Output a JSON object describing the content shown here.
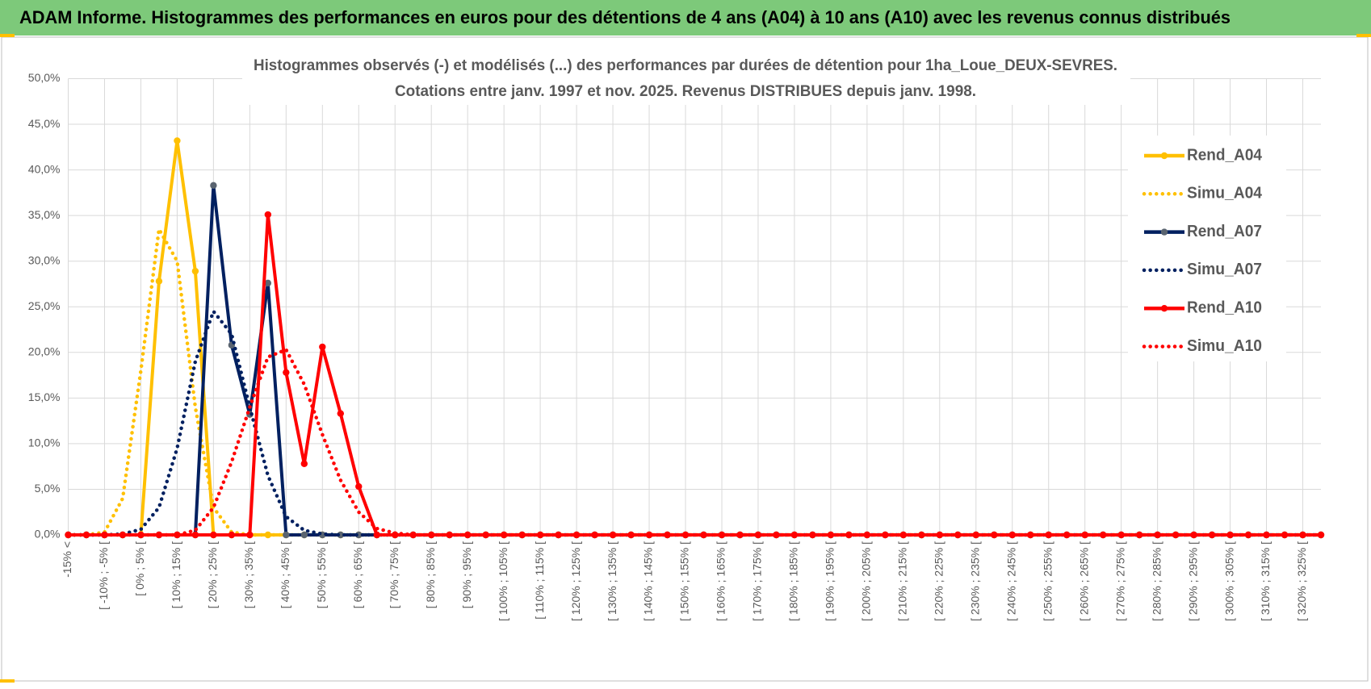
{
  "header": {
    "title": "ADAM Informe. Histogrammes des performances en euros pour des détentions de 4 ans (A04) à 10 ans (A10) avec les revenus connus distribués"
  },
  "chart_data": {
    "type": "line",
    "title": [
      "Histogrammes observés (-) et modélisés (...) des performances par durées de détention pour 1ha_Loue_DEUX-SEVRES.",
      "Cotations entre janv. 1997 et nov. 2025. Revenus DISTRIBUES depuis janv. 1998."
    ],
    "categories": [
      "-15% <",
      null,
      "[ -10% ; -5% [",
      null,
      "[ 0% ; 5% [",
      null,
      "[ 10% ; 15% [",
      null,
      "[ 20% ; 25% [",
      null,
      "[ 30% ; 35% [",
      null,
      "[ 40% ; 45% [",
      null,
      "[ 50% ; 55% [",
      null,
      "[ 60% ; 65% [",
      null,
      "[ 70% ; 75% [",
      null,
      "[ 80% ; 85% [",
      null,
      "[ 90% ; 95% [",
      null,
      "[ 100% ; 105% [",
      null,
      "[ 110% ; 115% [",
      null,
      "[ 120% ; 125% [",
      null,
      "[ 130% ; 135% [",
      null,
      "[ 140% ; 145% [",
      null,
      "[ 150% ; 155% [",
      null,
      "[ 160% ; 165% [",
      null,
      "[ 170% ; 175% [",
      null,
      "[ 180% ; 185% [",
      null,
      "[ 190% ; 195% [",
      null,
      "[ 200% ; 205% [",
      null,
      "[ 210% ; 215% [",
      null,
      "[ 220% ; 225% [",
      null,
      "[ 230% ; 235% [",
      null,
      "[ 240% ; 245% [",
      null,
      "[ 250% ; 255% [",
      null,
      "[ 260% ; 265% [",
      null,
      "[ 270% ; 275% [",
      null,
      "[ 280% ; 285% [",
      null,
      "[ 290% ; 295% [",
      null,
      "[ 300% ; 305% [",
      null,
      "[ 310% ; 315% [",
      null,
      "[ 320% ; 325% [",
      null
    ],
    "series": [
      {
        "name": "Rend_A04",
        "color": "#FFC000",
        "style": "solid",
        "markers": true,
        "marker_color": "#FFC000",
        "values": [
          0,
          0,
          0,
          0,
          0,
          27.8,
          43.2,
          28.9,
          0,
          0,
          0,
          0,
          0,
          0,
          0,
          0,
          0,
          0,
          0,
          0,
          0,
          0,
          0,
          0,
          0,
          0,
          0,
          0,
          0,
          0,
          0,
          0,
          0,
          0,
          0,
          0,
          0,
          0,
          0,
          0,
          0,
          0,
          0,
          0,
          0,
          0,
          0,
          0,
          0,
          0,
          0,
          0,
          0,
          0,
          0,
          0,
          0,
          0,
          0,
          0,
          0,
          0,
          0,
          0,
          0,
          0,
          0,
          0,
          0,
          0
        ]
      },
      {
        "name": "Simu_A04",
        "color": "#FFC000",
        "style": "dotted",
        "markers": false,
        "values": [
          0,
          0,
          0.3,
          4,
          18,
          33.5,
          30,
          14,
          3,
          0.3,
          0,
          0,
          0,
          0,
          0,
          0,
          0,
          0,
          0,
          0,
          0,
          0,
          0,
          0,
          0,
          0,
          0,
          0,
          0,
          0,
          0,
          0,
          0,
          0,
          0,
          0,
          0,
          0,
          0,
          0,
          0,
          0,
          0,
          0,
          0,
          0,
          0,
          0,
          0,
          0,
          0,
          0,
          0,
          0,
          0,
          0,
          0,
          0,
          0,
          0,
          0,
          0,
          0,
          0,
          0,
          0,
          0,
          0,
          0,
          0
        ]
      },
      {
        "name": "Rend_A07",
        "color": "#002060",
        "style": "solid",
        "markers": true,
        "marker_color": "#5A6470",
        "values": [
          0,
          0,
          0,
          0,
          0,
          0,
          0,
          0,
          38.3,
          20.8,
          13.2,
          27.6,
          0,
          0,
          0,
          0,
          0,
          0,
          0,
          0,
          0,
          0,
          0,
          0,
          0,
          0,
          0,
          0,
          0,
          0,
          0,
          0,
          0,
          0,
          0,
          0,
          0,
          0,
          0,
          0,
          0,
          0,
          0,
          0,
          0,
          0,
          0,
          0,
          0,
          0,
          0,
          0,
          0,
          0,
          0,
          0,
          0,
          0,
          0,
          0,
          0,
          0,
          0,
          0,
          0,
          0,
          0,
          0,
          0,
          0
        ]
      },
      {
        "name": "Simu_A07",
        "color": "#002060",
        "style": "dotted",
        "markers": false,
        "values": [
          0,
          0,
          0,
          0.1,
          0.6,
          3,
          9.5,
          19,
          24.5,
          22,
          14,
          6.5,
          2,
          0.5,
          0.1,
          0,
          0,
          0,
          0,
          0,
          0,
          0,
          0,
          0,
          0,
          0,
          0,
          0,
          0,
          0,
          0,
          0,
          0,
          0,
          0,
          0,
          0,
          0,
          0,
          0,
          0,
          0,
          0,
          0,
          0,
          0,
          0,
          0,
          0,
          0,
          0,
          0,
          0,
          0,
          0,
          0,
          0,
          0,
          0,
          0,
          0,
          0,
          0,
          0,
          0,
          0,
          0,
          0,
          0,
          0
        ]
      },
      {
        "name": "Rend_A10",
        "color": "#FF0000",
        "style": "solid",
        "markers": true,
        "marker_color": "#FF0000",
        "values": [
          0,
          0,
          0,
          0,
          0,
          0,
          0,
          0,
          0,
          0,
          0,
          35.1,
          17.8,
          7.8,
          20.6,
          13.3,
          5.3,
          0,
          0,
          0,
          0,
          0,
          0,
          0,
          0,
          0,
          0,
          0,
          0,
          0,
          0,
          0,
          0,
          0,
          0,
          0,
          0,
          0,
          0,
          0,
          0,
          0,
          0,
          0,
          0,
          0,
          0,
          0,
          0,
          0,
          0,
          0,
          0,
          0,
          0,
          0,
          0,
          0,
          0,
          0,
          0,
          0,
          0,
          0,
          0,
          0,
          0,
          0,
          0,
          0
        ]
      },
      {
        "name": "Simu_A10",
        "color": "#FF0000",
        "style": "dotted",
        "markers": false,
        "values": [
          0,
          0,
          0,
          0,
          0,
          0,
          0,
          0.5,
          3,
          8,
          14,
          19.5,
          20.3,
          16.5,
          11,
          6,
          2.5,
          0.7,
          0.2,
          0,
          0,
          0,
          0,
          0,
          0,
          0,
          0,
          0,
          0,
          0,
          0,
          0,
          0,
          0,
          0,
          0,
          0,
          0,
          0,
          0,
          0,
          0,
          0,
          0,
          0,
          0,
          0,
          0,
          0,
          0,
          0,
          0,
          0,
          0,
          0,
          0,
          0,
          0,
          0,
          0,
          0,
          0,
          0,
          0,
          0,
          0,
          0,
          0,
          0,
          0
        ]
      }
    ],
    "ylim": [
      0,
      50
    ],
    "yticks": [
      {
        "value": 0,
        "label": "0,0%"
      },
      {
        "value": 5,
        "label": "5,0%"
      },
      {
        "value": 10,
        "label": "10,0%"
      },
      {
        "value": 15,
        "label": "15,0%"
      },
      {
        "value": 20,
        "label": "20,0%"
      },
      {
        "value": 25,
        "label": "25,0%"
      },
      {
        "value": 30,
        "label": "30,0%"
      },
      {
        "value": 35,
        "label": "35,0%"
      },
      {
        "value": 40,
        "label": "40,0%"
      },
      {
        "value": 45,
        "label": "45,0%"
      },
      {
        "value": 50,
        "label": "50,0%"
      }
    ],
    "grid": true,
    "legend": "right"
  }
}
